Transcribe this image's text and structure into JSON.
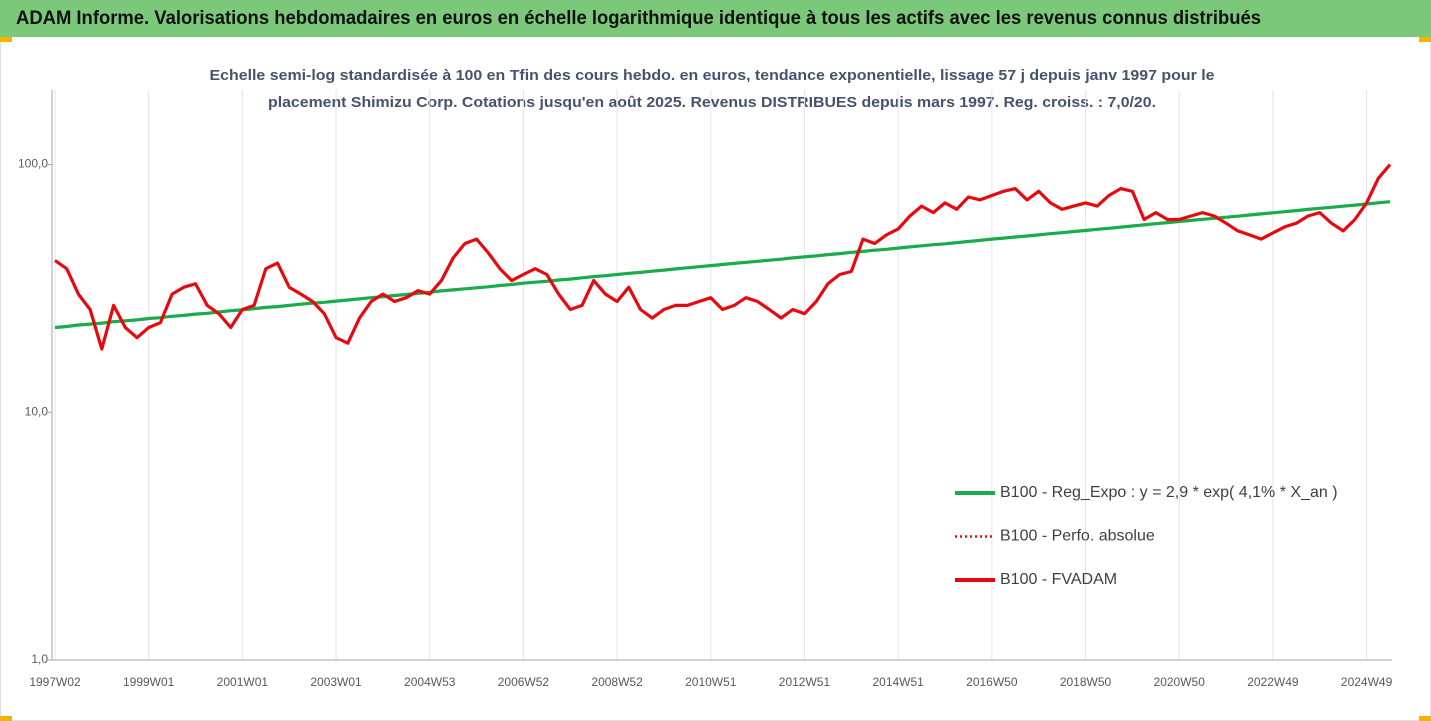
{
  "chart_data": {
    "type": "line",
    "title": "ADAM Informe. Valorisations hebdomadaires en euros en échelle logarithmique identique à tous les actifs avec les revenus connus distribués",
    "subtitle_lines": [
      "Echelle semi-log standardisée à 100 en Tfin des cours hebdo. en euros, tendance exponentielle, lissage 57 j depuis janv 1997 pour le",
      "placement Shimizu Corp. Cotations jusqu'en août 2025.  Revenus DISTRIBUES depuis mars 1997. Reg. croiss. : 7,0/20."
    ],
    "categories": [
      "1997W02",
      null,
      null,
      null,
      null,
      null,
      null,
      null,
      "1999W01",
      null,
      null,
      null,
      null,
      null,
      null,
      null,
      "2001W01",
      null,
      null,
      null,
      null,
      null,
      null,
      null,
      "2003W01",
      null,
      null,
      null,
      null,
      null,
      null,
      null,
      "2004W53",
      null,
      null,
      null,
      null,
      null,
      null,
      null,
      "2006W52",
      null,
      null,
      null,
      null,
      null,
      null,
      null,
      "2008W52",
      null,
      null,
      null,
      null,
      null,
      null,
      null,
      "2010W51",
      null,
      null,
      null,
      null,
      null,
      null,
      null,
      "2012W51",
      null,
      null,
      null,
      null,
      null,
      null,
      null,
      "2014W51",
      null,
      null,
      null,
      null,
      null,
      null,
      null,
      "2016W50",
      null,
      null,
      null,
      null,
      null,
      null,
      null,
      "2018W50",
      null,
      null,
      null,
      null,
      null,
      null,
      null,
      "2020W50",
      null,
      null,
      null,
      null,
      null,
      null,
      null,
      "2022W49",
      null,
      null,
      null,
      null,
      null,
      null,
      null,
      "2024W49",
      null,
      null
    ],
    "log_scale": true,
    "ylim": [
      1,
      200
    ],
    "yticks": [
      {
        "value": 1,
        "label": "1,0"
      },
      {
        "value": 10,
        "label": "10,0"
      },
      {
        "value": 100,
        "label": "100,0"
      }
    ],
    "grid": true,
    "legend": "right",
    "series": [
      {
        "name": "B100 - Reg_Expo : y = 2,9 * exp( 4,1% *  X_an )",
        "color": "#1aab4b",
        "style": "solid",
        "values": [
          22.0,
          22.2,
          22.5,
          22.7,
          22.9,
          23.2,
          23.4,
          23.6,
          23.9,
          24.1,
          24.4,
          24.6,
          24.9,
          25.1,
          25.4,
          25.7,
          25.9,
          26.2,
          26.5,
          26.7,
          27.0,
          27.3,
          27.6,
          27.8,
          28.1,
          28.4,
          28.7,
          29.0,
          29.3,
          29.6,
          29.9,
          30.2,
          30.5,
          30.9,
          31.2,
          31.5,
          31.8,
          32.1,
          32.5,
          32.8,
          33.2,
          33.5,
          33.8,
          34.2,
          34.5,
          34.9,
          35.3,
          35.6,
          36.0,
          36.4,
          36.7,
          37.1,
          37.5,
          37.9,
          38.3,
          38.7,
          39.1,
          39.5,
          39.9,
          40.3,
          40.7,
          41.1,
          41.5,
          42.0,
          42.4,
          42.8,
          43.3,
          43.7,
          44.2,
          44.6,
          45.1,
          45.5,
          46.0,
          46.5,
          47.0,
          47.5,
          47.9,
          48.4,
          48.9,
          49.4,
          50.0,
          50.5,
          51.0,
          51.5,
          52.0,
          52.6,
          53.1,
          53.7,
          54.2,
          54.8,
          55.3,
          55.9,
          56.5,
          57.1,
          57.7,
          58.3,
          58.9,
          59.5,
          60.1,
          60.7,
          61.3,
          61.9,
          62.6,
          63.2,
          63.9,
          64.5,
          65.2,
          65.9,
          66.6,
          67.2,
          67.9,
          68.6,
          69.3,
          70.1,
          70.8
        ]
      },
      {
        "name": "B100 - Perfo. absolue",
        "color": "#e8090e",
        "style": "dotted",
        "values": [
          41,
          38,
          30,
          26,
          18,
          27,
          22,
          20,
          22,
          23,
          30,
          32,
          33,
          27,
          25,
          22,
          26,
          27,
          38,
          40,
          32,
          30,
          28,
          25,
          20,
          19,
          24,
          28,
          30,
          28,
          29,
          31,
          30,
          34,
          42,
          48,
          50,
          44,
          38,
          34,
          36,
          38,
          36,
          30,
          26,
          27,
          34,
          30,
          28,
          32,
          26,
          24,
          26,
          27,
          27,
          28,
          29,
          26,
          27,
          29,
          28,
          26,
          24,
          26,
          25,
          28,
          33,
          36,
          37,
          50,
          48,
          52,
          55,
          62,
          68,
          64,
          70,
          66,
          74,
          72,
          75,
          78,
          80,
          72,
          78,
          70,
          66,
          68,
          70,
          68,
          75,
          80,
          78,
          60,
          64,
          60,
          60,
          62,
          64,
          62,
          58,
          54,
          52,
          50,
          53,
          56,
          58,
          62,
          64,
          58,
          54,
          60,
          70,
          88,
          100
        ]
      },
      {
        "name": "B100 - FVADAM",
        "color": "#e8090e",
        "style": "solid",
        "values": [
          41,
          38,
          30,
          26,
          18,
          27,
          22,
          20,
          22,
          23,
          30,
          32,
          33,
          27,
          25,
          22,
          26,
          27,
          38,
          40,
          32,
          30,
          28,
          25,
          20,
          19,
          24,
          28,
          30,
          28,
          29,
          31,
          30,
          34,
          42,
          48,
          50,
          44,
          38,
          34,
          36,
          38,
          36,
          30,
          26,
          27,
          34,
          30,
          28,
          32,
          26,
          24,
          26,
          27,
          27,
          28,
          29,
          26,
          27,
          29,
          28,
          26,
          24,
          26,
          25,
          28,
          33,
          36,
          37,
          50,
          48,
          52,
          55,
          62,
          68,
          64,
          70,
          66,
          74,
          72,
          75,
          78,
          80,
          72,
          78,
          70,
          66,
          68,
          70,
          68,
          75,
          80,
          78,
          60,
          64,
          60,
          60,
          62,
          64,
          62,
          58,
          54,
          52,
          50,
          53,
          56,
          58,
          62,
          64,
          58,
          54,
          60,
          70,
          88,
          100
        ]
      }
    ]
  }
}
